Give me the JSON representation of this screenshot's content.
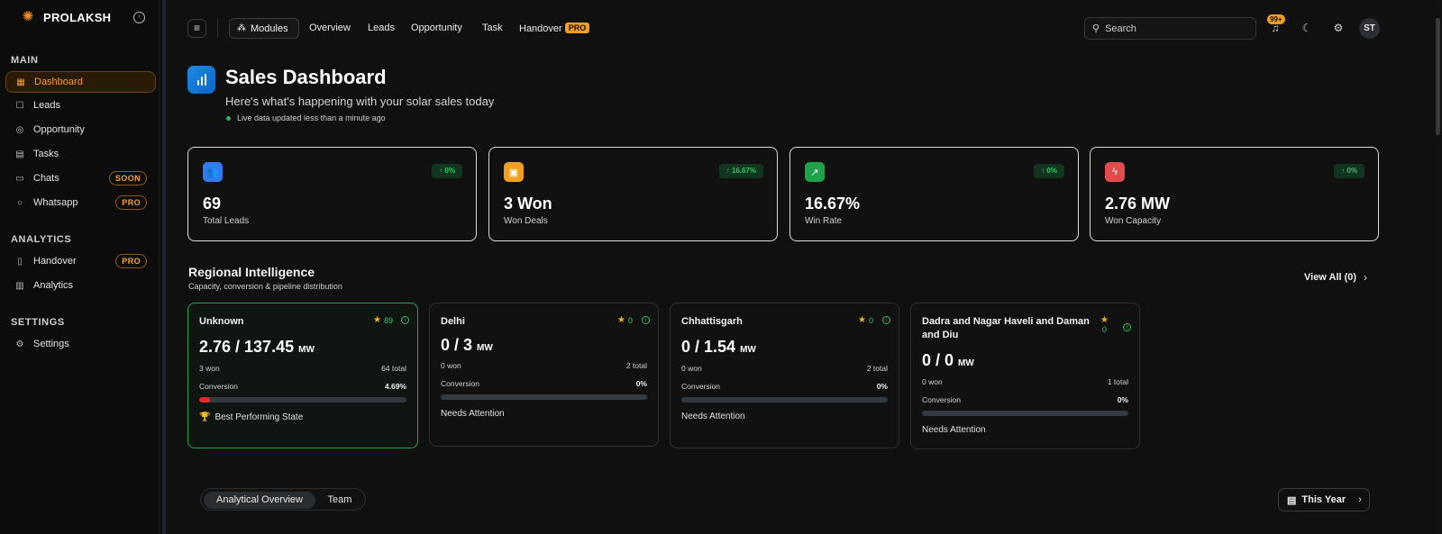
{
  "brand": {
    "name": "PROLAKSH"
  },
  "sidebar": {
    "sections": [
      {
        "title": "MAIN",
        "items": [
          {
            "label": "Dashboard",
            "icon": "dashboard-icon",
            "active": true,
            "badge": ""
          },
          {
            "label": "Leads",
            "icon": "leads-icon",
            "badge": ""
          },
          {
            "label": "Opportunity",
            "icon": "target-icon",
            "badge": ""
          },
          {
            "label": "Tasks",
            "icon": "calendar-icon",
            "badge": ""
          },
          {
            "label": "Chats",
            "icon": "chat-icon",
            "badge": "SOON"
          },
          {
            "label": "Whatsapp",
            "icon": "whatsapp-icon",
            "badge": "PRO"
          }
        ]
      },
      {
        "title": "ANALYTICS",
        "items": [
          {
            "label": "Handover",
            "icon": "document-icon",
            "badge": "PRO"
          },
          {
            "label": "Analytics",
            "icon": "bar-chart-icon",
            "badge": ""
          }
        ]
      },
      {
        "title": "SETTINGS",
        "items": [
          {
            "label": "Settings",
            "icon": "gear-icon",
            "badge": ""
          }
        ]
      }
    ]
  },
  "topbar": {
    "modules_label": "Modules",
    "links": [
      "Overview",
      "Leads",
      "Opportunity",
      "Task",
      "Handover"
    ],
    "handover_badge": "PRO",
    "search_placeholder": "Search",
    "notification_count": "99+",
    "avatar_initials": "ST"
  },
  "header": {
    "title": "Sales Dashboard",
    "subtitle": "Here's what's happening with your solar sales today",
    "live_text": "Live data updated less than a minute ago"
  },
  "kpis": [
    {
      "value": "69",
      "label": "Total Leads",
      "delta": "↑ 0%",
      "color": "#2f7cf0",
      "icon": "users-icon"
    },
    {
      "value": "3 Won",
      "label": "Won Deals",
      "delta": "↑ 16.67%",
      "color": "#f0a020",
      "icon": "briefcase-icon"
    },
    {
      "value": "16.67%",
      "label": "Win Rate",
      "delta": "↑ 0%",
      "color": "#1fa24a",
      "icon": "trending-up-icon"
    },
    {
      "value": "2.76 MW",
      "label": "Won Capacity",
      "delta": "↑ 0%",
      "color": "#e14b4b",
      "icon": "lightning-icon"
    }
  ],
  "regional": {
    "title": "Regional Intelligence",
    "subtitle": "Capacity, conversion & pipeline distribution",
    "view_all": "View All (0)",
    "states": [
      {
        "name": "Unknown",
        "score": "89",
        "capacity": "2.76 / 137.45",
        "unit": "MW",
        "won": "3 won",
        "total": "64 total",
        "conversion_label": "Conversion",
        "conversion": "4.69%",
        "progress": 4.69,
        "note": "Best Performing State",
        "best": true
      },
      {
        "name": "Delhi",
        "score": "0",
        "capacity": "0 / 3",
        "unit": "MW",
        "won": "0 won",
        "total": "2 total",
        "conversion_label": "Conversion",
        "conversion": "0%",
        "progress": 0,
        "note": "Needs Attention",
        "best": false
      },
      {
        "name": "Chhattisgarh",
        "score": "0",
        "capacity": "0 / 1.54",
        "unit": "MW",
        "won": "0 won",
        "total": "2 total",
        "conversion_label": "Conversion",
        "conversion": "0%",
        "progress": 0,
        "note": "Needs Attention",
        "best": false
      },
      {
        "name": "Dadra and Nagar Haveli and Daman and Diu",
        "score": "0",
        "capacity": "0 / 0",
        "unit": "MW",
        "won": "0 won",
        "total": "1 total",
        "conversion_label": "Conversion",
        "conversion": "0%",
        "progress": 0,
        "note": "Needs Attention",
        "best": false
      }
    ]
  },
  "bottom": {
    "tabs": [
      "Analytical Overview",
      "Team"
    ],
    "period": "This Year"
  }
}
